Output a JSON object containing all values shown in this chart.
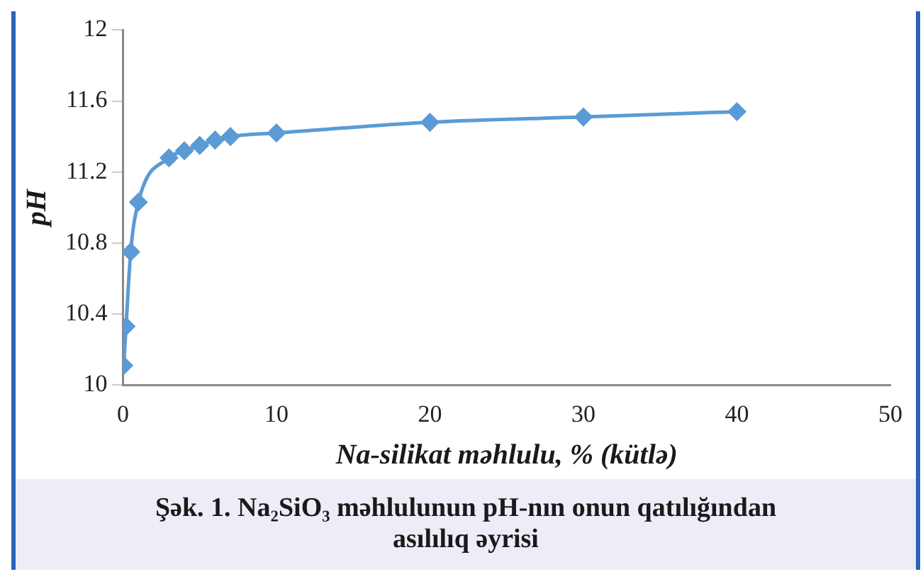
{
  "chart_data": {
    "type": "line",
    "xlabel": "Na-silikat məhlulu, % (kütlə)",
    "ylabel": "pH",
    "x": [
      0.05,
      0.2,
      0.5,
      1,
      3,
      4,
      5,
      6,
      7,
      10,
      20,
      30,
      40
    ],
    "series": [
      {
        "color": "#5b9bd5",
        "values": [
          10.11,
          10.33,
          10.75,
          11.03,
          11.28,
          11.32,
          11.35,
          11.38,
          11.4,
          11.42,
          11.48,
          11.51,
          11.54
        ]
      }
    ],
    "xlim": [
      0,
      50
    ],
    "xticks": [
      0,
      10,
      20,
      30,
      40,
      50
    ],
    "ylim": [
      10,
      12
    ],
    "yticks": [
      10,
      10.4,
      10.8,
      11.2,
      11.6,
      12
    ],
    "grid": false,
    "legend": false,
    "marker": "diamond",
    "line_style": "solid",
    "annotations": [
      "Şək. 1. Na₂SiO₃ məhlulunun pH-nın onun qatılığından asılılıq əyrisi"
    ]
  }
}
